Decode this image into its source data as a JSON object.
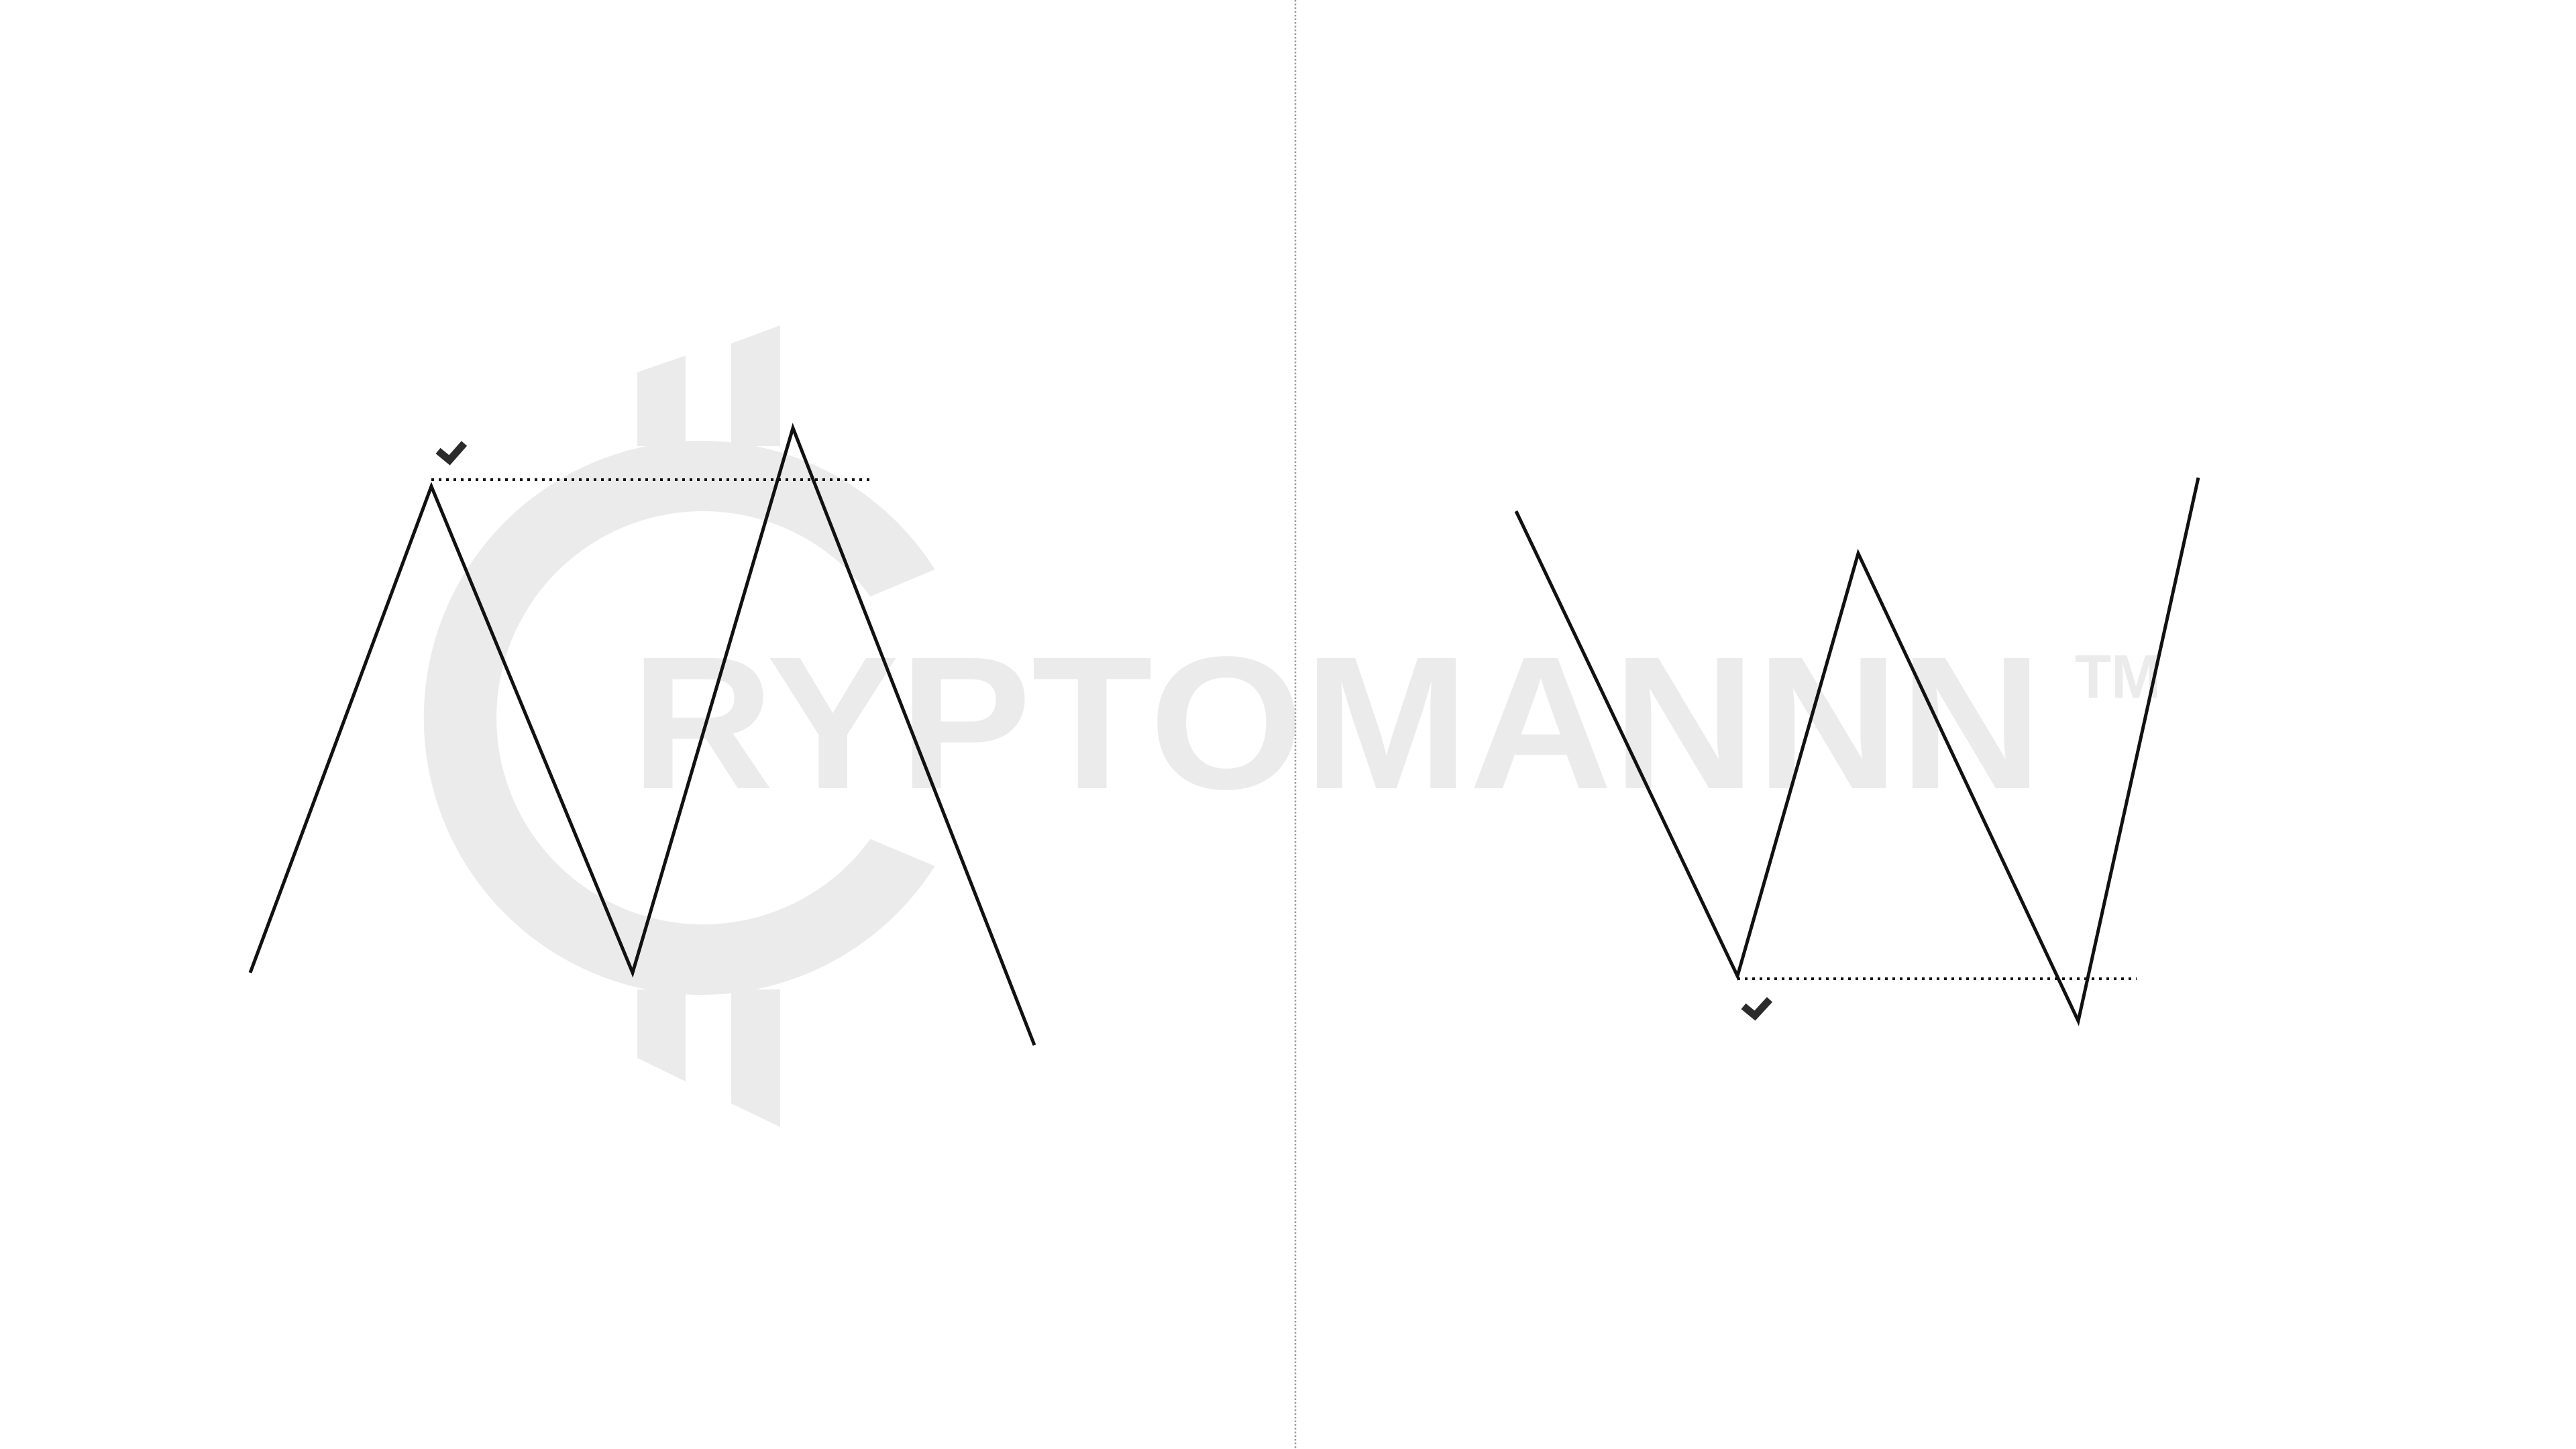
{
  "watermark": {
    "brand": "RYPTOMANNN",
    "trademark": "TM",
    "color": "#ebebeb"
  },
  "colors": {
    "pattern_line": "#111111",
    "check_mark": "#2b2b2b",
    "divider": "#9a9a9a"
  },
  "icons": {
    "top_pattern_check": "check-icon",
    "bottom_pattern_check": "check-icon"
  }
}
